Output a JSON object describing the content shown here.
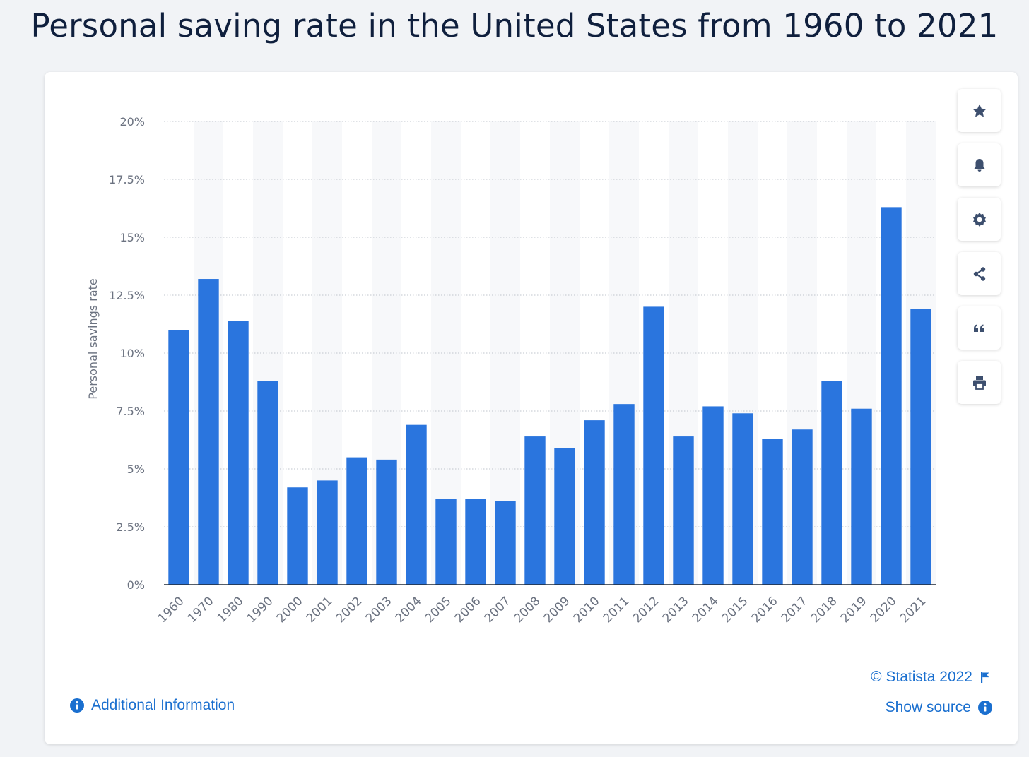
{
  "page": {
    "title": "Personal saving rate in the United States from 1960 to 2021"
  },
  "toolbar": {
    "buttons": [
      {
        "icon": "star-icon",
        "name": "favorite-button"
      },
      {
        "icon": "bell-icon",
        "name": "notification-button"
      },
      {
        "icon": "gear-icon",
        "name": "settings-button"
      },
      {
        "icon": "share-icon",
        "name": "share-button"
      },
      {
        "icon": "quote-icon",
        "name": "cite-button"
      },
      {
        "icon": "printer-icon",
        "name": "print-button"
      }
    ]
  },
  "footer": {
    "additional_info": "Additional Information",
    "copyright": "© Statista 2022",
    "show_source": "Show source"
  },
  "colors": {
    "bar": "#2a75de",
    "link": "#1a6fcf",
    "title": "#0f1f3d",
    "icon": "#3d4f6e"
  },
  "chart_data": {
    "type": "bar",
    "ylabel": "Personal savings rate",
    "ylim": [
      0,
      20
    ],
    "yticks": [
      0,
      2.5,
      5,
      7.5,
      10,
      12.5,
      15,
      17.5,
      20
    ],
    "ytick_labels": [
      "0%",
      "2.5%",
      "5%",
      "7.5%",
      "10%",
      "12.5%",
      "15%",
      "17.5%",
      "20%"
    ],
    "grid": true,
    "categories": [
      "1960",
      "1970",
      "1980",
      "1990",
      "2000",
      "2001",
      "2002",
      "2003",
      "2004",
      "2005",
      "2006",
      "2007",
      "2008",
      "2009",
      "2010",
      "2011",
      "2012",
      "2013",
      "2014",
      "2015",
      "2016",
      "2017",
      "2018",
      "2019",
      "2020",
      "2021"
    ],
    "values": [
      11.0,
      13.2,
      11.4,
      8.8,
      4.2,
      4.5,
      5.5,
      5.4,
      6.9,
      3.7,
      3.7,
      3.6,
      6.4,
      5.9,
      7.1,
      7.8,
      12.0,
      6.4,
      7.7,
      7.4,
      6.3,
      6.7,
      8.8,
      7.6,
      16.3,
      11.9
    ]
  }
}
